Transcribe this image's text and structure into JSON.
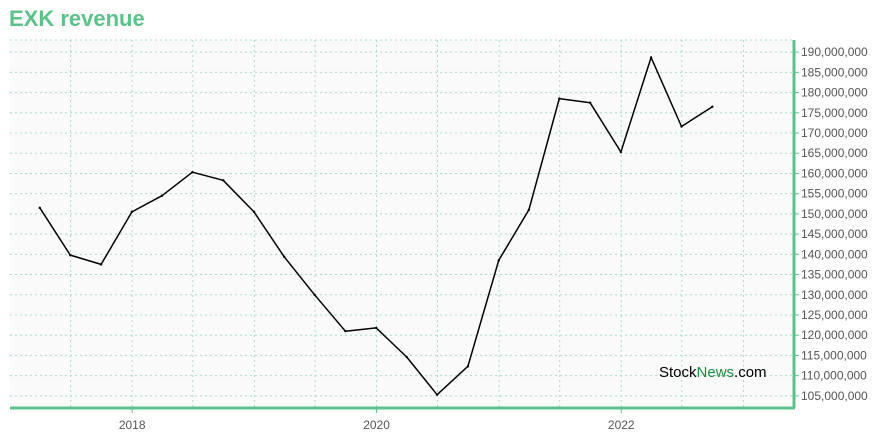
{
  "title": "EXK revenue",
  "watermark": {
    "part1": "Stock",
    "part2": "News",
    "part3": ".com"
  },
  "colors": {
    "title": "#5cc28a",
    "axis": "#5cc28a",
    "grid": "#a8dcc3",
    "line": "#000000",
    "plot_bg": "#fafafa"
  },
  "chart_data": {
    "type": "line",
    "title": "EXK revenue",
    "xlabel": "",
    "ylabel": "",
    "grid": true,
    "y_axis_side": "right",
    "ylim": [
      102000000,
      193000000
    ],
    "xlim": [
      "2017-01-01",
      "2023-06-01"
    ],
    "x_ticks": [
      "2018",
      "2020",
      "2022"
    ],
    "y_ticks": [
      105000000,
      110000000,
      115000000,
      120000000,
      125000000,
      130000000,
      135000000,
      140000000,
      145000000,
      150000000,
      155000000,
      160000000,
      165000000,
      170000000,
      175000000,
      180000000,
      185000000,
      190000000
    ],
    "y_tick_labels": [
      "105,000,000",
      "110,000,000",
      "115,000,000",
      "120,000,000",
      "125,000,000",
      "130,000,000",
      "135,000,000",
      "140,000,000",
      "145,000,000",
      "150,000,000",
      "155,000,000",
      "160,000,000",
      "165,000,000",
      "170,000,000",
      "175,000,000",
      "180,000,000",
      "185,000,000",
      "190,000,000"
    ],
    "series": [
      {
        "x": [
          "2017-03-31",
          "2017-06-30",
          "2017-09-30",
          "2017-12-31",
          "2018-03-31",
          "2018-06-30",
          "2018-09-30",
          "2018-12-31",
          "2019-03-31",
          "2019-06-30",
          "2019-09-30",
          "2019-12-31",
          "2020-03-31",
          "2020-06-30",
          "2020-09-30",
          "2020-12-31",
          "2021-03-31",
          "2021-06-30",
          "2021-09-30",
          "2021-12-31",
          "2022-03-31",
          "2022-06-30",
          "2022-09-30"
        ],
        "values": [
          151500000,
          139800000,
          137500000,
          150500000,
          154500000,
          160300000,
          158300000,
          150500000,
          139400000,
          130000000,
          121000000,
          121800000,
          114600000,
          105300000,
          112300000,
          138500000,
          151000000,
          178500000,
          177500000,
          165300000,
          188700000,
          171600000,
          176500000
        ]
      }
    ]
  }
}
